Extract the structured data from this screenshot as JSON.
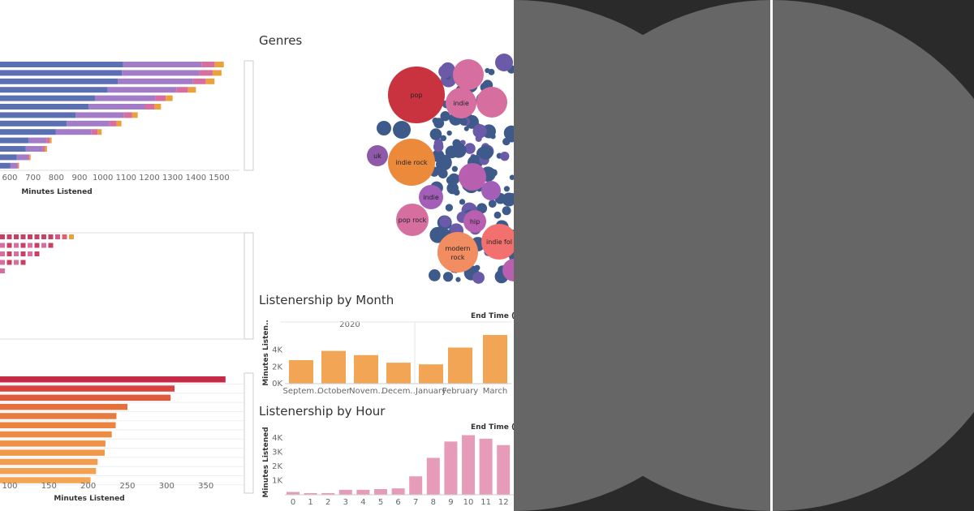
{
  "titles": {
    "genres": "Genres",
    "month": "Listenership by Month",
    "hour": "Listenership by Hour"
  },
  "header_text": {
    "month": "End Time (A",
    "hour": "End Time (A",
    "year": "2020"
  },
  "chart_data": [
    {
      "type": "bar",
      "id": "top-stacked",
      "xlabel": "Minutes Listened",
      "x_ticks": [
        600,
        700,
        800,
        900,
        1000,
        1100,
        1200,
        1300,
        1400,
        1500
      ],
      "values": [
        1520,
        1510,
        1480,
        1400,
        1300,
        1250,
        1150,
        1080,
        995,
        780,
        760,
        690,
        640
      ]
    },
    {
      "type": "table",
      "id": "middle-squares",
      "rows": [
        11,
        8,
        6,
        4,
        1
      ]
    },
    {
      "type": "bar",
      "id": "bottom-bars",
      "xlabel": "Minutes Listened",
      "x_ticks": [
        100,
        150,
        200,
        250,
        300,
        350
      ],
      "values": [
        375,
        310,
        305,
        250,
        236,
        235,
        230,
        222,
        221,
        212,
        210,
        203
      ]
    },
    {
      "type": "scatter",
      "id": "genres-bubbles",
      "labels": [
        "pop",
        "indie",
        "uk",
        "indie rock",
        "indie",
        "pop rock",
        "hip",
        "modern rock",
        "indie fol"
      ]
    },
    {
      "type": "bar",
      "id": "month-bars",
      "categories": [
        "Septem..",
        "October",
        "Novem..",
        "Decem..",
        "January",
        "February",
        "March"
      ],
      "values": [
        2.8,
        3.9,
        3.4,
        2.5,
        2.3,
        4.3,
        5.8
      ],
      "ylabel": "Minutes Listen..",
      "y_ticks": [
        "0K",
        "2K",
        "4K"
      ]
    },
    {
      "type": "bar",
      "id": "hour-bars",
      "categories": [
        "0",
        "1",
        "2",
        "3",
        "4",
        "5",
        "6",
        "7",
        "8",
        "9",
        "10",
        "11",
        "12"
      ],
      "values": [
        0.2,
        0.12,
        0.12,
        0.35,
        0.35,
        0.4,
        0.45,
        1.3,
        2.6,
        3.75,
        4.2,
        3.95,
        3.5
      ],
      "ylabel": "Minutes Listened",
      "y_ticks": [
        "1K",
        "2K",
        "3K",
        "4K"
      ]
    }
  ]
}
